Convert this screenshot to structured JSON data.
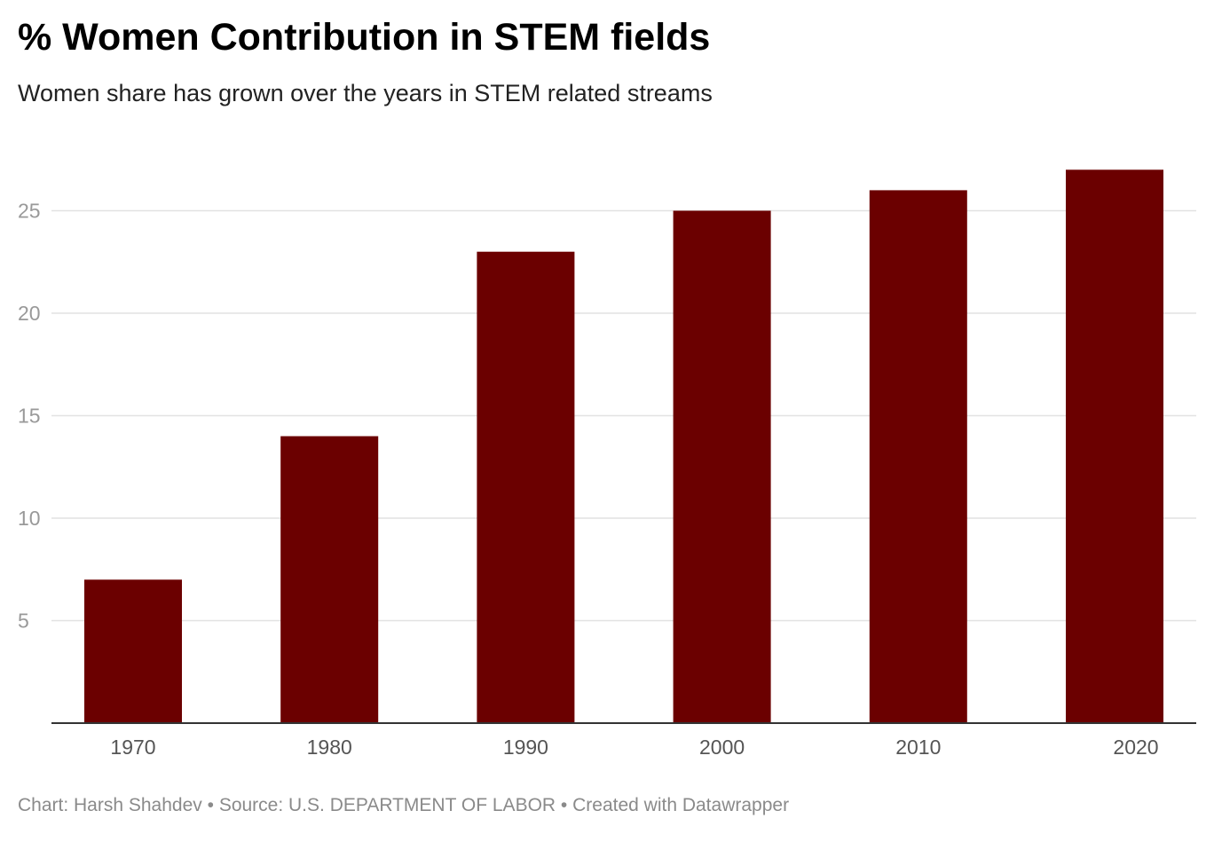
{
  "title": "% Women Contribution in STEM fields",
  "subtitle": "Women share has grown over the years in STEM related streams",
  "footer": {
    "credit": "Chart: Harsh Shahdev",
    "separator": " • ",
    "source": "Source: U.S. DEPARTMENT OF LABOR",
    "created_with": "Created with Datawrapper"
  },
  "colors": {
    "bar": "#6b0000",
    "grid": "#e2e2e2",
    "axis": "#333333"
  },
  "chart_data": {
    "type": "bar",
    "categories": [
      "1970",
      "1980",
      "1990",
      "2000",
      "2010",
      "2020"
    ],
    "values": [
      7,
      14,
      23,
      25,
      26,
      27
    ],
    "title": "% Women Contribution in STEM fields",
    "xlabel": "",
    "ylabel": "",
    "ylim": [
      0,
      27
    ],
    "yticks": [
      5,
      10,
      15,
      20,
      25
    ],
    "grid": true,
    "legend": "none"
  }
}
